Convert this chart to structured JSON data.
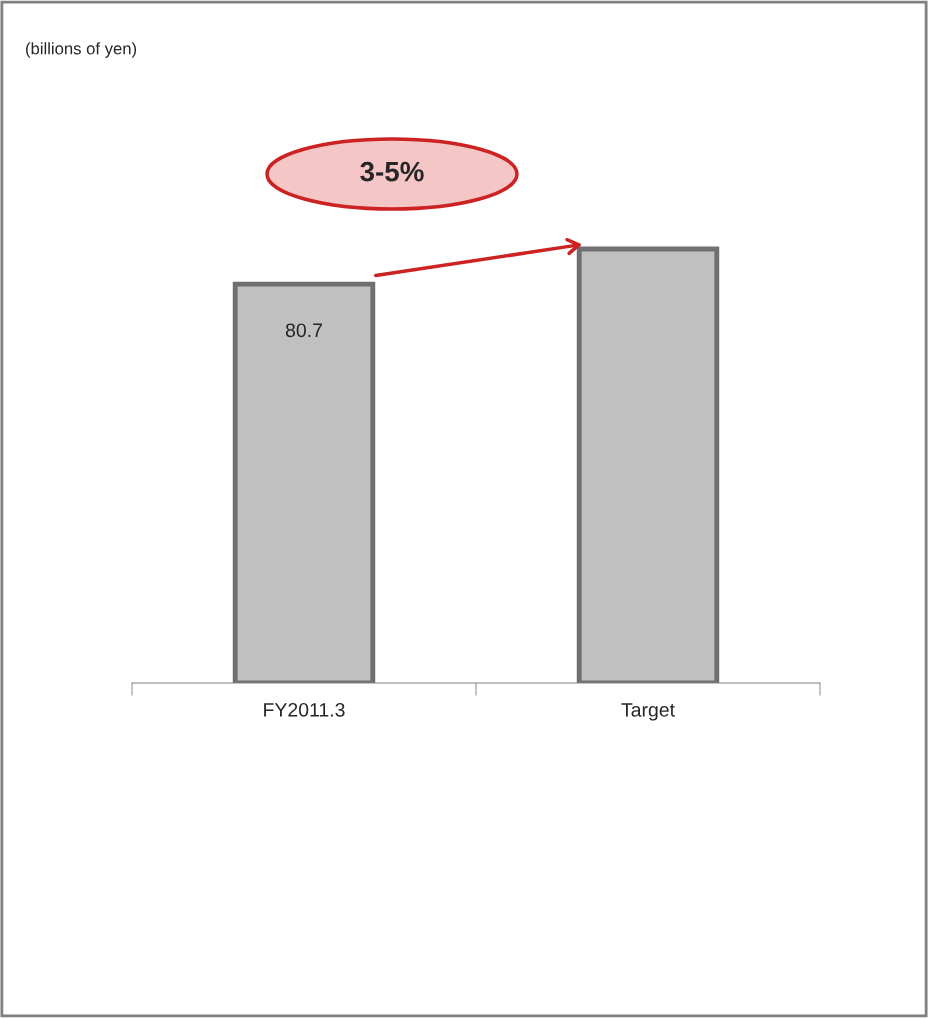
{
  "chart_data": {
    "type": "bar",
    "categories": [
      "FY2011.3",
      "Target"
    ],
    "values": [
      80.7,
      87.8
    ],
    "value_labels": [
      "80.7",
      null
    ],
    "tick_labels": "x",
    "color": "#c0c0c0",
    "grid": false,
    "legend": false,
    "annotations": [
      "(billions of yen)",
      "3-5%"
    ]
  }
}
